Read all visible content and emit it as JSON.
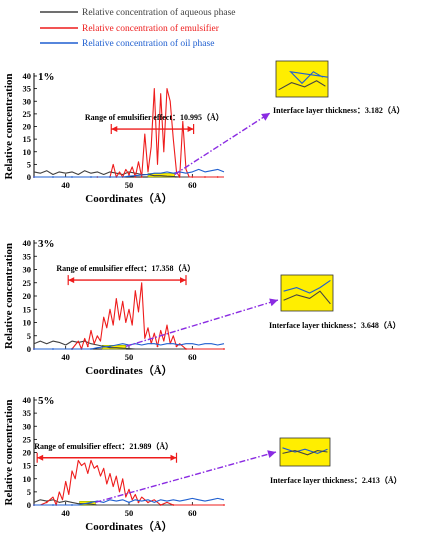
{
  "legend": {
    "entries": [
      {
        "label": "Relative concentration of aqueous phase",
        "color": "#404040"
      },
      {
        "label": "Relative concentration of emulsifier",
        "color": "#ee1c1c"
      },
      {
        "label": "Relative concentration of oil phase",
        "color": "#1f5fd0"
      }
    ]
  },
  "chart_data": [
    {
      "type": "line",
      "panel_label": "1%",
      "xlabel": "Coordinates（Å）",
      "ylabel": "Relative concentration",
      "xlim": [
        35,
        65
      ],
      "ylim": [
        0,
        40
      ],
      "xticks": [
        40,
        50,
        60
      ],
      "yticks": [
        0,
        5,
        10,
        15,
        20,
        25,
        30,
        35,
        40
      ],
      "emulsifier_range": {
        "label": "Range of emulsifier effect：10.995（Å）",
        "x_start": 47.2,
        "x_end": 60.2,
        "y": 19
      },
      "interface": {
        "label": "Interface layer thickness：3.182（Å）",
        "x_start": 53.0,
        "x_end": 57.2
      },
      "series": [
        {
          "name": "Relative concentration of aqueous phase",
          "color": "#404040",
          "x": [
            35,
            36,
            37,
            38,
            39,
            40,
            41,
            42,
            43,
            44,
            45,
            46,
            47,
            48,
            49,
            50,
            51,
            52,
            53,
            54,
            55,
            56,
            57,
            58,
            59,
            60,
            61,
            62,
            63,
            64,
            65
          ],
          "y": [
            2,
            1.5,
            2.5,
            1,
            2,
            1.5,
            2,
            1,
            2.5,
            1.5,
            2,
            1,
            2,
            1.5,
            1,
            2,
            1.5,
            1,
            1,
            0.5,
            0.5,
            0.3,
            0.2,
            0,
            0,
            0,
            0,
            0,
            0,
            0,
            0
          ]
        },
        {
          "name": "Relative concentration of emulsifier",
          "color": "#ee1c1c",
          "x": [
            35,
            40,
            45,
            46,
            47,
            47.5,
            48,
            48.5,
            49,
            49.5,
            50,
            50.5,
            51,
            51.5,
            52,
            52.5,
            53,
            53.5,
            54,
            54.5,
            55,
            55.5,
            56,
            56.5,
            57,
            57.5,
            58,
            58.5,
            59,
            59.5,
            60,
            61,
            62,
            63,
            64,
            65
          ],
          "y": [
            0,
            0,
            0,
            0,
            0,
            5,
            0,
            2,
            0,
            3,
            1,
            4,
            0,
            6,
            0,
            17,
            2,
            12,
            35,
            5,
            33,
            10,
            35,
            30,
            15,
            2,
            0,
            22,
            3,
            0,
            0,
            0,
            0,
            0,
            0,
            0
          ]
        },
        {
          "name": "Relative concentration of oil phase",
          "color": "#1f5fd0",
          "x": [
            35,
            36,
            37,
            38,
            39,
            40,
            41,
            42,
            43,
            44,
            45,
            46,
            47,
            48,
            49,
            50,
            51,
            52,
            53,
            54,
            55,
            56,
            57,
            58,
            59,
            60,
            61,
            62,
            63,
            64,
            65
          ],
          "y": [
            0,
            0,
            0,
            0,
            0,
            0,
            0,
            0,
            0,
            0,
            0,
            0,
            0,
            0,
            0,
            0.3,
            0.5,
            0.8,
            1,
            1.5,
            1.5,
            2,
            1.5,
            2,
            1.5,
            2,
            3,
            2,
            2.5,
            3,
            2
          ]
        }
      ]
    },
    {
      "type": "line",
      "panel_label": "3%",
      "xlabel": "Coordinates（Å）",
      "ylabel": "Relative concentration",
      "xlim": [
        35,
        65
      ],
      "ylim": [
        0,
        40
      ],
      "xticks": [
        40,
        50,
        60
      ],
      "yticks": [
        0,
        5,
        10,
        15,
        20,
        25,
        30,
        35,
        40
      ],
      "emulsifier_range": {
        "label": "Range of emulsifier effect：17.358（Å）",
        "x_start": 40.4,
        "x_end": 59,
        "y": 26
      },
      "interface": {
        "label": "Interface layer thickness：3.648（Å）",
        "x_start": 45.8,
        "x_end": 49.5
      },
      "series": [
        {
          "name": "Relative concentration of aqueous phase",
          "color": "#404040",
          "x": [
            35,
            36,
            37,
            38,
            39,
            40,
            41,
            42,
            43,
            44,
            45,
            46,
            47,
            48,
            49,
            50,
            51,
            52,
            53,
            54,
            55,
            56,
            57,
            58,
            59,
            60,
            61,
            62,
            63,
            64,
            65
          ],
          "y": [
            2,
            3,
            2,
            3,
            2.5,
            1.5,
            3,
            2.5,
            3,
            2,
            1.5,
            1,
            0.5,
            0.5,
            0.3,
            0.2,
            0,
            0,
            0,
            0,
            0,
            0,
            0,
            0,
            0,
            0,
            0,
            0,
            0,
            0,
            0
          ]
        },
        {
          "name": "Relative concentration of emulsifier",
          "color": "#ee1c1c",
          "x": [
            35,
            40,
            41,
            42,
            42.5,
            43,
            43.5,
            44,
            44.5,
            45,
            45.5,
            46,
            46.5,
            47,
            47.5,
            48,
            48.5,
            49,
            49.5,
            50,
            50.5,
            51,
            51.5,
            52,
            52.5,
            53,
            53.5,
            54,
            54.5,
            55,
            55.5,
            56,
            56.5,
            57,
            57.5,
            58,
            59,
            60,
            65
          ],
          "y": [
            0,
            0,
            0,
            3,
            0,
            4,
            1,
            7,
            2,
            5,
            3,
            12,
            8,
            15,
            9,
            19,
            11,
            18,
            10,
            15,
            9,
            22,
            14,
            25,
            4,
            8,
            2,
            6,
            1,
            7,
            3,
            9,
            2,
            5,
            1,
            2,
            0,
            0,
            0
          ]
        },
        {
          "name": "Relative concentration of oil phase",
          "color": "#1f5fd0",
          "x": [
            35,
            36,
            37,
            38,
            39,
            40,
            41,
            42,
            43,
            44,
            45,
            46,
            47,
            48,
            49,
            50,
            51,
            52,
            53,
            54,
            55,
            56,
            57,
            58,
            59,
            60,
            61,
            62,
            63,
            64,
            65
          ],
          "y": [
            0,
            0,
            0,
            0,
            0,
            0,
            0,
            0,
            0,
            0,
            0.5,
            0.8,
            1,
            1.5,
            2,
            1.5,
            2,
            1.5,
            2,
            2,
            1.5,
            2,
            2,
            1.5,
            2,
            2,
            1.5,
            2,
            2,
            1.5,
            2
          ]
        }
      ]
    },
    {
      "type": "line",
      "panel_label": "5%",
      "xlabel": "Coordinates（Å）",
      "ylabel": "Relative concentration",
      "xlim": [
        35,
        65
      ],
      "ylim": [
        0,
        40
      ],
      "xticks": [
        40,
        50,
        60
      ],
      "yticks": [
        0,
        5,
        10,
        15,
        20,
        25,
        30,
        35,
        40
      ],
      "emulsifier_range": {
        "label": "Range of emulsifier effect：21.989（Å）",
        "x_start": 35.5,
        "x_end": 57.5,
        "y": 18
      },
      "interface": {
        "label": "Interface layer thickness：2.413（Å）",
        "x_start": 42.2,
        "x_end": 44.7
      },
      "series": [
        {
          "name": "Relative concentration of aqueous phase",
          "color": "#404040",
          "x": [
            35,
            36,
            37,
            38,
            39,
            40,
            41,
            42,
            43,
            44,
            45,
            46,
            47,
            48,
            49,
            50,
            51,
            52,
            53,
            54,
            55,
            56,
            57,
            58,
            59,
            60,
            61,
            62,
            63,
            64,
            65
          ],
          "y": [
            1,
            2,
            1.5,
            2,
            1,
            1.5,
            1,
            0.5,
            0.5,
            0.3,
            0,
            0,
            0,
            0,
            0,
            0,
            0,
            0,
            0,
            0,
            0,
            0,
            0,
            0,
            0,
            0,
            0,
            0,
            0,
            0,
            0
          ]
        },
        {
          "name": "Relative concentration of emulsifier",
          "color": "#ee1c1c",
          "x": [
            35,
            36,
            37,
            38,
            38.5,
            39,
            39.5,
            40,
            40.5,
            41,
            41.5,
            42,
            42.5,
            43,
            43.5,
            44,
            44.5,
            45,
            45.5,
            46,
            46.5,
            47,
            47.5,
            48,
            48.5,
            49,
            49.5,
            50,
            50.5,
            51,
            51.5,
            52,
            53,
            54,
            55,
            56,
            57,
            58,
            65
          ],
          "y": [
            0,
            0,
            1,
            3,
            0,
            5,
            2,
            9,
            4,
            13,
            10,
            17,
            15,
            16,
            12,
            17,
            14,
            15,
            11,
            14,
            8,
            12,
            7,
            11,
            5,
            10,
            3,
            6,
            2,
            4,
            1,
            3,
            1,
            2,
            0,
            1,
            0,
            0,
            0
          ]
        },
        {
          "name": "Relative concentration of oil phase",
          "color": "#1f5fd0",
          "x": [
            35,
            36,
            37,
            38,
            39,
            40,
            41,
            42,
            43,
            44,
            45,
            46,
            47,
            48,
            49,
            50,
            51,
            52,
            53,
            54,
            55,
            56,
            57,
            58,
            59,
            60,
            61,
            62,
            63,
            64,
            65
          ],
          "y": [
            0,
            0,
            0,
            0,
            0,
            0,
            0,
            0,
            0.5,
            1,
            1.5,
            1,
            2,
            1.5,
            2,
            1,
            2,
            1.5,
            2,
            1,
            2,
            1.5,
            2,
            1.5,
            2,
            2.5,
            2,
            1.5,
            2,
            2.5,
            2
          ]
        }
      ]
    }
  ]
}
